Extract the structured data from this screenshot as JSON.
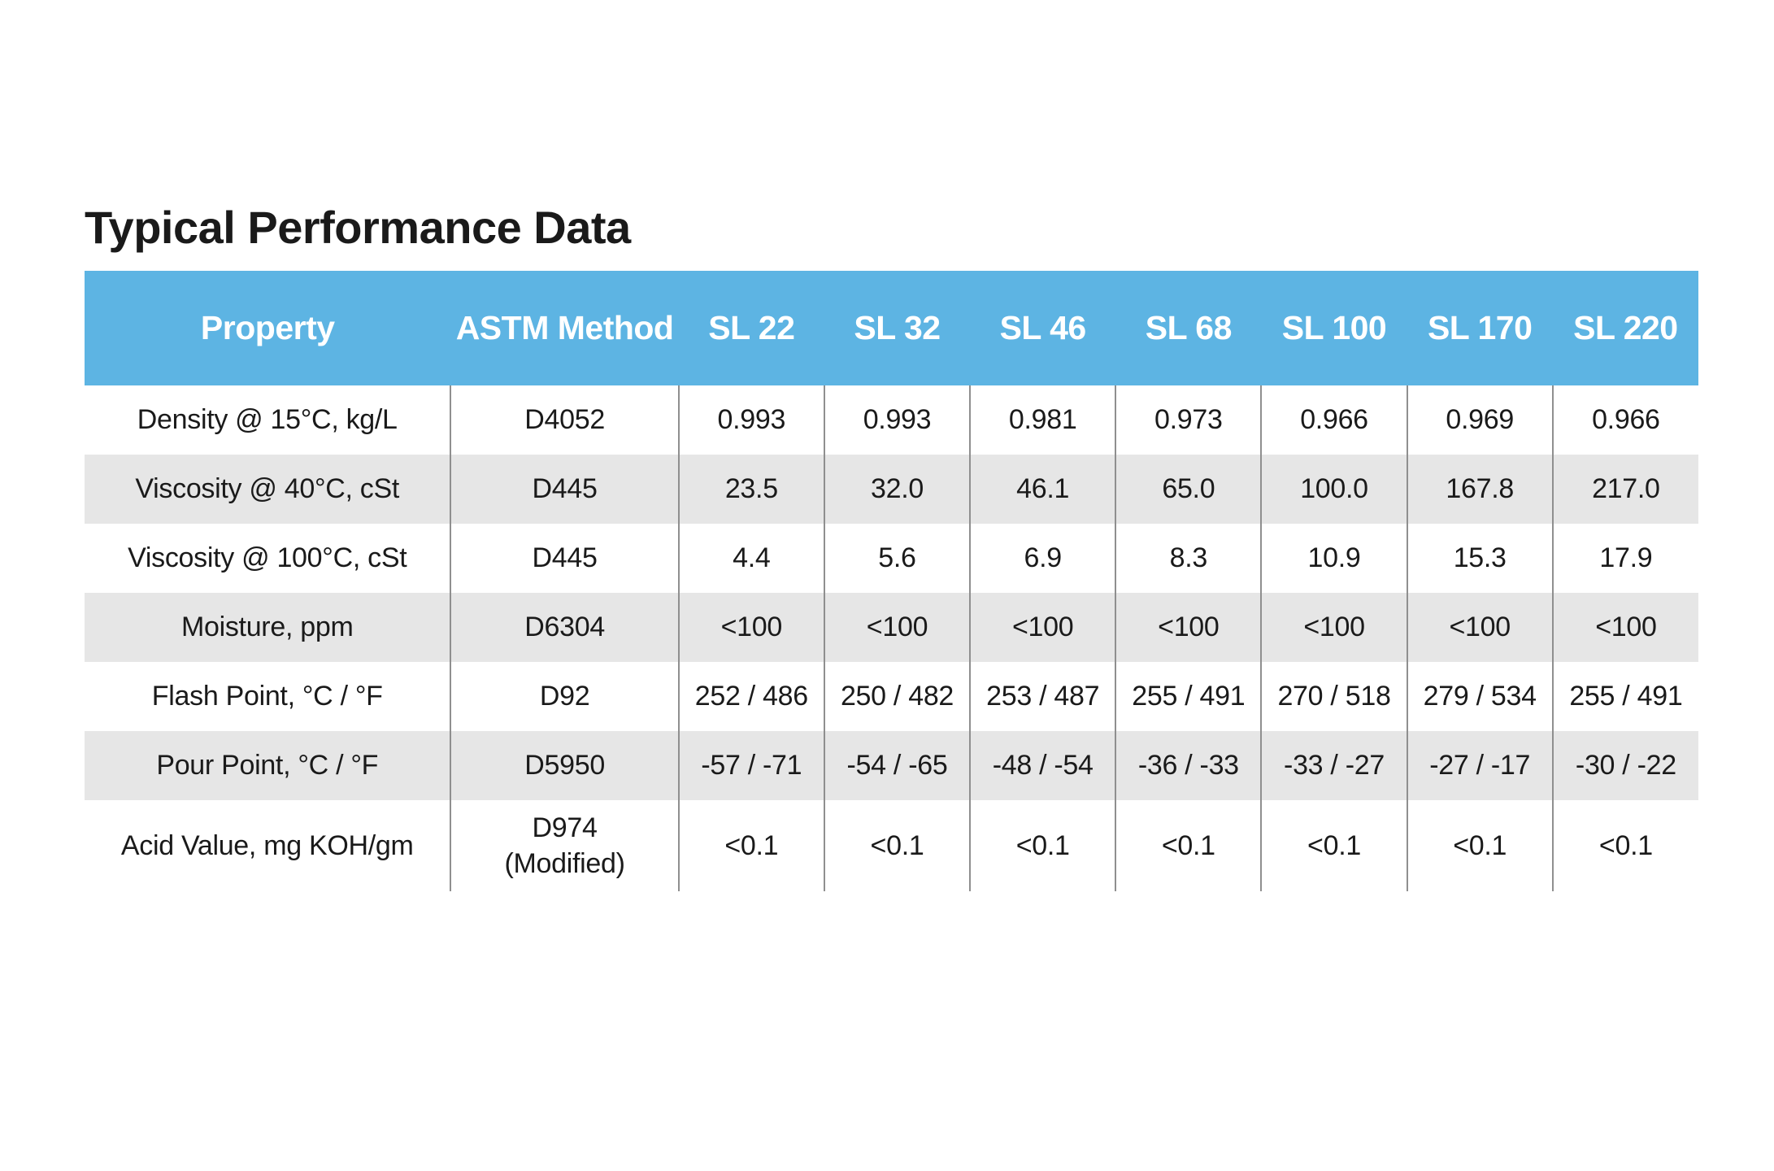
{
  "title": "Typical Performance Data",
  "colors": {
    "header_bg": "#5db4e3",
    "header_text": "#ffffff",
    "row_shade": "#e6e6e6",
    "divider": "#8f8f8f"
  },
  "table": {
    "headers": [
      "Property",
      "ASTM Method",
      "SL 22",
      "SL 32",
      "SL 46",
      "SL 68",
      "SL 100",
      "SL 170",
      "SL 220"
    ],
    "rows": [
      {
        "property": "Density @ 15°C, kg/L",
        "method": [
          "D4052"
        ],
        "values": [
          "0.993",
          "0.993",
          "0.981",
          "0.973",
          "0.966",
          "0.969",
          "0.966"
        ]
      },
      {
        "property": "Viscosity @ 40°C, cSt",
        "method": [
          "D445"
        ],
        "values": [
          "23.5",
          "32.0",
          "46.1",
          "65.0",
          "100.0",
          "167.8",
          "217.0"
        ]
      },
      {
        "property": "Viscosity @ 100°C, cSt",
        "method": [
          "D445"
        ],
        "values": [
          "4.4",
          "5.6",
          "6.9",
          "8.3",
          "10.9",
          "15.3",
          "17.9"
        ]
      },
      {
        "property": "Moisture, ppm",
        "method": [
          "D6304"
        ],
        "values": [
          "<100",
          "<100",
          "<100",
          "<100",
          "<100",
          "<100",
          "<100"
        ]
      },
      {
        "property": "Flash Point, °C / °F",
        "method": [
          "D92"
        ],
        "values": [
          "252 / 486",
          "250 / 482",
          "253 / 487",
          "255 / 491",
          "270 / 518",
          "279 / 534",
          "255 / 491"
        ]
      },
      {
        "property": "Pour Point, °C / °F",
        "method": [
          "D5950"
        ],
        "values": [
          "-57 / -71",
          "-54 / -65",
          "-48 / -54",
          "-36 / -33",
          "-33 / -27",
          "-27 / -17",
          "-30 / -22"
        ]
      },
      {
        "property": "Acid Value, mg KOH/gm",
        "method": [
          "D974",
          "(Modified)"
        ],
        "values": [
          "<0.1",
          "<0.1",
          "<0.1",
          "<0.1",
          "<0.1",
          "<0.1",
          "<0.1"
        ]
      }
    ]
  }
}
